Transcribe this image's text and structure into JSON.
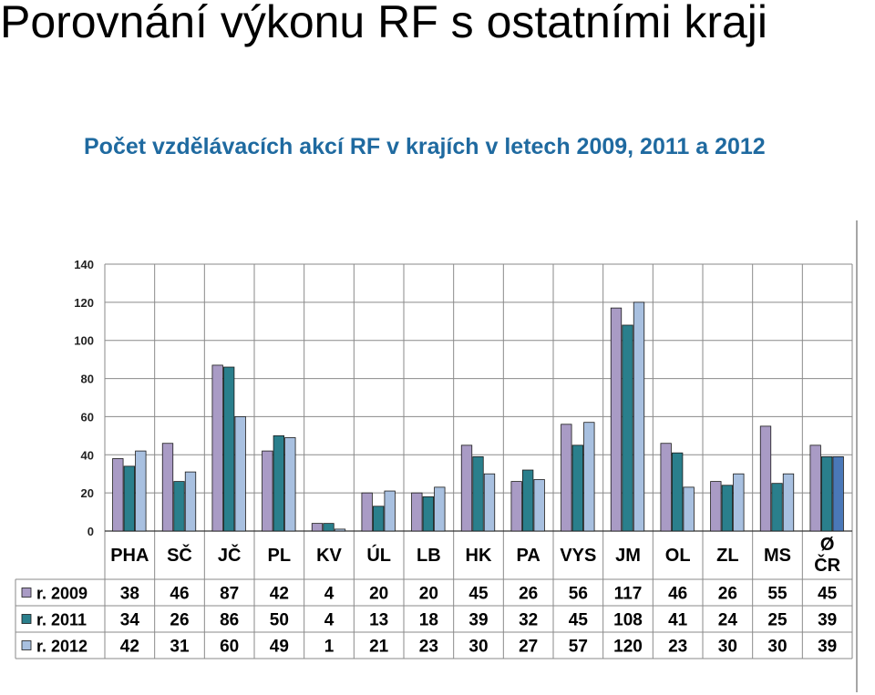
{
  "slide": {
    "title": "Porovnání výkonu RF s ostatními kraji",
    "caption": "Počet vzdělávacích akcí RF v krajích v letech 2009, 2011 a 2012"
  },
  "chart_data": {
    "type": "bar",
    "categories": [
      "PHA",
      "SČ",
      "JČ",
      "PL",
      "KV",
      "ÚL",
      "LB",
      "HK",
      "PA",
      "VYS",
      "JM",
      "OL",
      "ZL",
      "MS",
      "Ø ČR"
    ],
    "series": [
      {
        "name": "r. 2009",
        "color": "#a99bc5",
        "values": [
          38,
          46,
          87,
          42,
          4,
          20,
          20,
          45,
          26,
          56,
          117,
          46,
          26,
          55,
          45
        ]
      },
      {
        "name": "r. 2011",
        "color": "#2a7f8c",
        "values": [
          34,
          26,
          86,
          50,
          4,
          13,
          18,
          39,
          32,
          45,
          108,
          41,
          24,
          25,
          39
        ]
      },
      {
        "name": "r. 2012",
        "color": "#a8c0e0",
        "values": [
          42,
          31,
          60,
          49,
          1,
          21,
          23,
          30,
          27,
          57,
          120,
          23,
          30,
          30,
          39
        ]
      }
    ],
    "highlight": {
      "category": "Ø ČR",
      "series": "r. 2012",
      "color": "#4a78b8"
    },
    "ylim": [
      0,
      140
    ],
    "yticks": [
      0,
      20,
      40,
      60,
      80,
      100,
      120,
      140
    ],
    "grid": true,
    "legend": "data-table-left"
  }
}
